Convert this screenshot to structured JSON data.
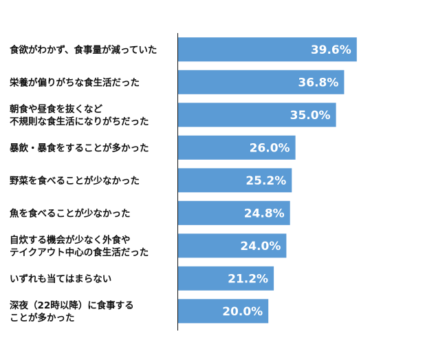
{
  "chart_data": {
    "type": "bar",
    "orientation": "horizontal",
    "categories": [
      [
        "食欲がわかず、食事量が減っていた"
      ],
      [
        "栄養が偏りがちな食生活だった"
      ],
      [
        "朝食や昼食を抜くなど",
        "不規則な食生活になりがちだった"
      ],
      [
        "暴飲・暴食をすることが多かった"
      ],
      [
        "野菜を食べることが少なかった"
      ],
      [
        "魚を食べることが少なかった"
      ],
      [
        "自炊する機会が少なく外食や",
        "テイクアウト中心の食生活だった"
      ],
      [
        "いずれも当てはまらない"
      ],
      [
        "深夜（22時以降）に食事する",
        "ことが多かった"
      ]
    ],
    "values": [
      39.6,
      36.8,
      35.0,
      26.0,
      25.2,
      24.8,
      24.0,
      21.2,
      20.0
    ],
    "value_labels": [
      "39.6%",
      "36.8%",
      "35.0%",
      "26.0%",
      "25.2%",
      "24.8%",
      "24.0%",
      "21.2%",
      "20.0%"
    ],
    "xlim": [
      0,
      50
    ],
    "bar_color": "#5b9bd5",
    "grid": false,
    "legend": "none"
  }
}
